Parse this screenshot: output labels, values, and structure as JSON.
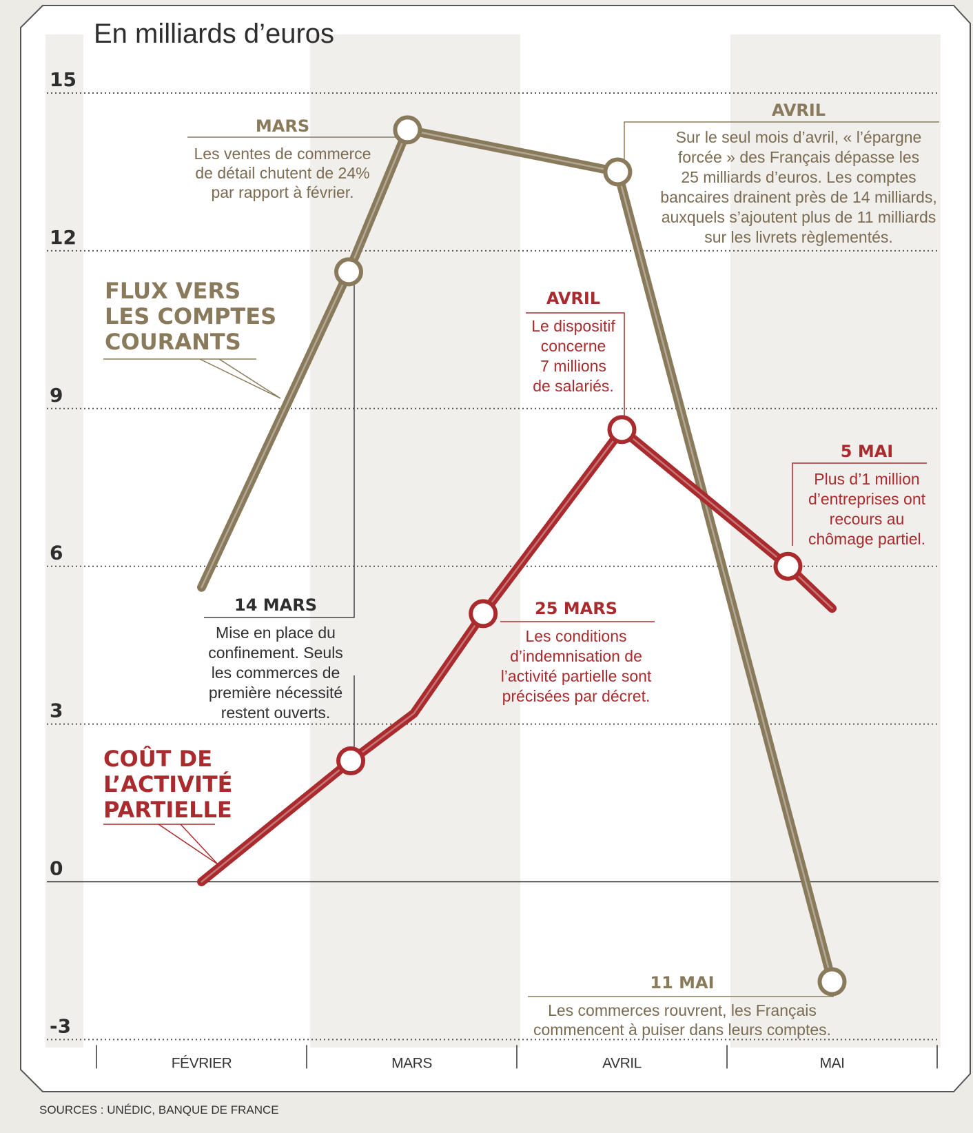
{
  "chart_data": {
    "type": "line",
    "title": "En milliards d’euros",
    "source": "SOURCES : UNÉDIC, BANQUE DE FRANCE",
    "y_axis": {
      "ticks": [
        "15",
        "12",
        "9",
        "6",
        "3",
        "0",
        "-3"
      ],
      "tick_values": [
        15,
        12,
        9,
        6,
        3,
        0,
        -3
      ],
      "ylim": [
        -3,
        15
      ],
      "zero_line": true,
      "grid": "dotted"
    },
    "x_axis": {
      "categories": [
        "FÉVRIER",
        "MARS",
        "AVRIL",
        "MAI"
      ],
      "category_bands": [
        [
          0.0,
          1.0
        ],
        [
          1.0,
          2.0
        ],
        [
          2.0,
          3.0
        ],
        [
          3.0,
          4.0
        ]
      ]
    },
    "series": [
      {
        "name": "FLUX VERS LES COMPTES COURANTS",
        "color": "#8a7a5c",
        "points": [
          {
            "x": 0.5,
            "y": 5.6,
            "marker": false
          },
          {
            "x": 1.2,
            "y": 11.6,
            "marker": true
          },
          {
            "x": 1.48,
            "y": 14.3,
            "marker": true
          },
          {
            "x": 2.48,
            "y": 13.5,
            "marker": true
          },
          {
            "x": 3.5,
            "y": -1.9,
            "marker": true
          }
        ]
      },
      {
        "name": "COÛT DE L’ACTIVITÉ PARTIELLE",
        "color": "#a92b2e",
        "points": [
          {
            "x": 0.5,
            "y": 0.0,
            "marker": false
          },
          {
            "x": 1.21,
            "y": 2.3,
            "marker": true
          },
          {
            "x": 1.51,
            "y": 3.2,
            "marker": false
          },
          {
            "x": 1.84,
            "y": 5.1,
            "marker": true
          },
          {
            "x": 2.5,
            "y": 8.6,
            "marker": true
          },
          {
            "x": 3.29,
            "y": 6.0,
            "marker": true
          },
          {
            "x": 3.5,
            "y": 5.2,
            "marker": false
          }
        ]
      }
    ],
    "annotations": [
      {
        "id": "mars",
        "heading": "MARS",
        "color": "#8a7a5c",
        "text": [
          "Les ventes de commerce",
          "de détail chutent de 24%",
          "par rapport à février."
        ]
      },
      {
        "id": "avril-flux",
        "heading": "AVRIL",
        "color": "#8a7a5c",
        "text": [
          "Sur le seul mois d’avril, « l’épargne",
          "forcée » des Français dépasse les",
          "25 milliards d’euros. Les comptes",
          "bancaires drainent près de 14 milliards,",
          "auxquels s’ajoutent plus de 11 milliards",
          "sur les livrets règlementés."
        ]
      },
      {
        "id": "avril-cout",
        "heading": "AVRIL",
        "color": "#a92b2e",
        "text": [
          "Le dispositif",
          "concerne",
          "7 millions",
          "de salariés."
        ]
      },
      {
        "id": "5-mai",
        "heading": "5 MAI",
        "color": "#a92b2e",
        "text": [
          "Plus d’1 million",
          "d’entreprises ont",
          "recours au",
          "chômage partiel."
        ]
      },
      {
        "id": "14-mars",
        "heading": "14 MARS",
        "color": "#2e2e2e",
        "text": [
          "Mise en place du",
          "confinement. Seuls",
          "les commerces de",
          "première nécessité",
          "restent ouverts."
        ]
      },
      {
        "id": "25-mars",
        "heading": "25 MARS",
        "color": "#a92b2e",
        "text": [
          "Les conditions",
          "d’indemnisation de",
          "l’activité partielle sont",
          "précisées par décret."
        ]
      },
      {
        "id": "11-mai",
        "heading": "11 MAI",
        "color": "#8a7a5c",
        "text": [
          "Les commerces rouvrent, les Français",
          "commencent à puiser dans leurs comptes."
        ]
      }
    ],
    "series_labels": [
      {
        "id": "flux",
        "color": "#8a7a5c",
        "lines": [
          "FLUX VERS",
          "LES COMPTES",
          "COURANTS"
        ]
      },
      {
        "id": "cout",
        "color": "#a92b2e",
        "lines": [
          "COÛT DE",
          "L’ACTIVITÉ",
          "PARTIELLE"
        ]
      }
    ]
  }
}
